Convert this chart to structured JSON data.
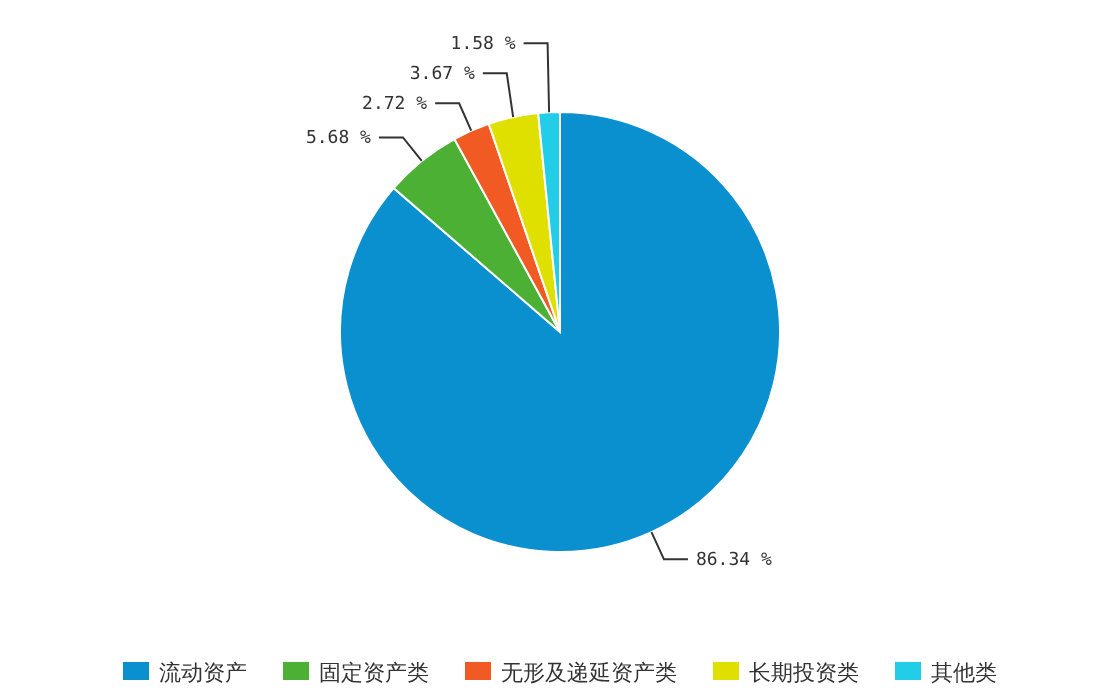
{
  "chart_data": {
    "type": "pie",
    "categories": [
      "流动资产",
      "固定资产类",
      "无形及递延资产类",
      "长期投资类",
      "其他类"
    ],
    "values": [
      86.34,
      5.68,
      2.72,
      3.67,
      1.58
    ],
    "colors": [
      "#0a8fcf",
      "#4cb034",
      "#f15a22",
      "#dfe000",
      "#22cde8"
    ],
    "value_labels": [
      "86.34 %",
      "5.68 %",
      "2.72 %",
      "3.67 %",
      "1.58 %"
    ],
    "legend": "bottom"
  }
}
